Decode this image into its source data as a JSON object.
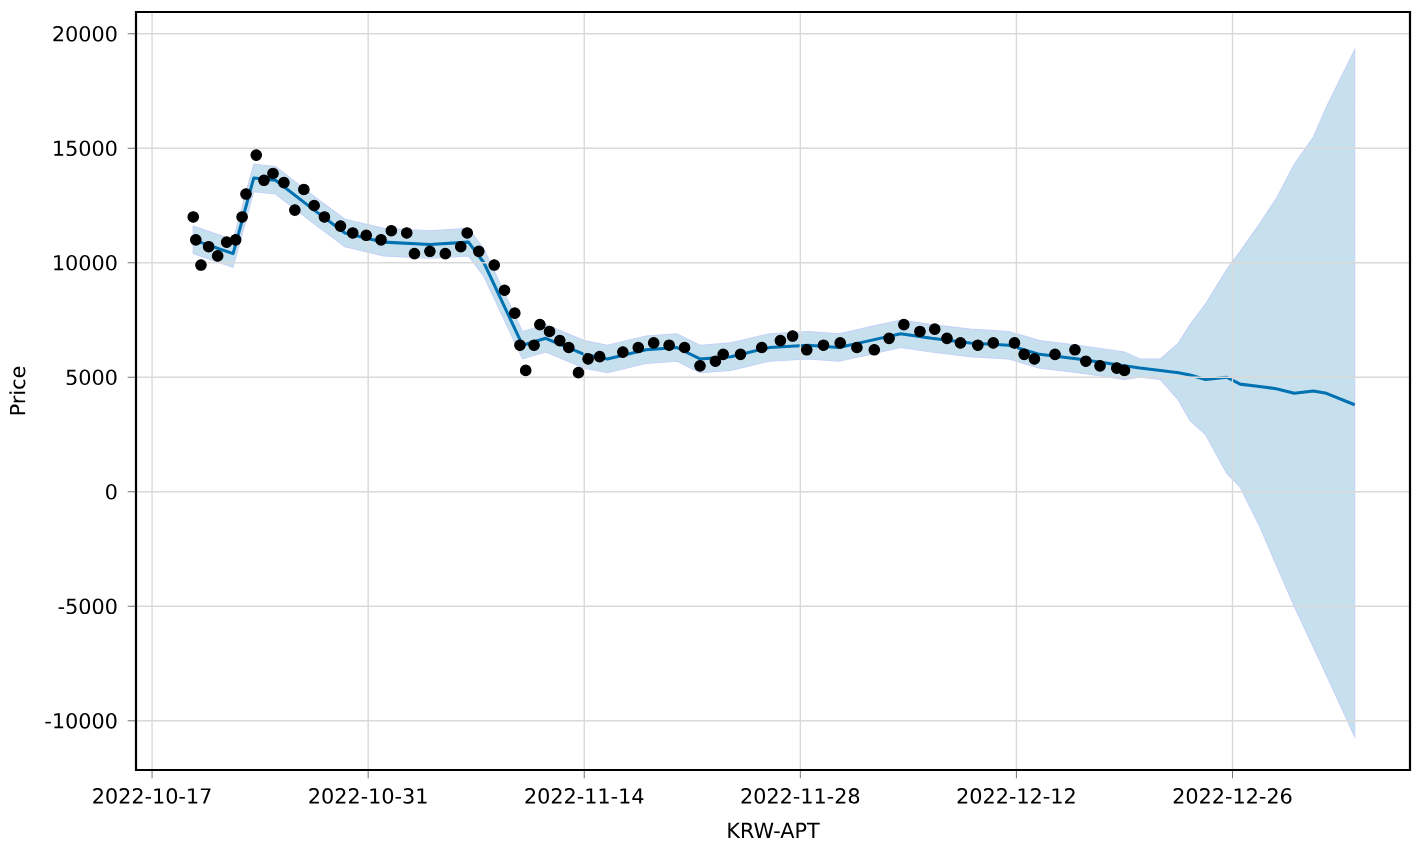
{
  "chart_data": {
    "type": "line",
    "xlabel": "KRW-APT",
    "ylabel": "Price",
    "xlim": [
      "2022-10-15T23:00",
      "2023-01-06T12:00"
    ],
    "ylim": [
      -12150,
      20950
    ],
    "xticks": [
      "2022-10-17",
      "2022-10-31",
      "2022-11-14",
      "2022-11-28",
      "2022-12-12",
      "2022-12-26"
    ],
    "yticks": [
      -10000,
      -5000,
      0,
      5000,
      10000,
      15000,
      20000
    ],
    "grid": true,
    "legend": false,
    "series": [
      {
        "color": "#0072b2",
        "line_style": "solid",
        "marker": "none",
        "x": [
          "2022-10-19T16:00",
          "2022-10-22T06:00",
          "2022-10-23T14:00",
          "2022-10-25T00:00",
          "2022-10-27T12:00",
          "2022-10-29T12:00",
          "2022-11-01T00:00",
          "2022-11-04T00:00",
          "2022-11-06T12:00",
          "2022-11-07T12:00",
          "2022-11-10T00:00",
          "2022-11-11T12:00",
          "2022-11-14T00:00",
          "2022-11-15T12:00",
          "2022-11-18T00:00",
          "2022-11-20T00:00",
          "2022-11-21T12:00",
          "2022-11-23T12:00",
          "2022-11-26T00:00",
          "2022-11-28T12:00",
          "2022-11-30T12:00",
          "2022-12-02T12:00",
          "2022-12-04T12:00",
          "2022-12-06T12:00",
          "2022-12-09T00:00",
          "2022-12-11T12:00",
          "2022-12-13T12:00",
          "2022-12-16T00:00",
          "2022-12-19T00:00",
          "2022-12-20T00:00",
          "2022-12-21T08:00",
          "2022-12-22T12:00",
          "2022-12-23T06:00",
          "2022-12-24T06:00",
          "2022-12-25T15:00",
          "2022-12-26T12:00",
          "2022-12-27T18:00",
          "2022-12-28T20:00",
          "2022-12-30T00:00",
          "2022-12-31T06:00",
          "2023-01-01T02:00",
          "2023-01-02T22:00"
        ],
        "values": [
          11000,
          10400,
          13700,
          13600,
          12300,
          11300,
          10900,
          10800,
          10900,
          10000,
          6400,
          6700,
          6000,
          5800,
          6200,
          6300,
          5800,
          5900,
          6300,
          6400,
          6300,
          6600,
          6900,
          6700,
          6500,
          6400,
          6000,
          5800,
          5500,
          5400,
          5300,
          5200,
          5100,
          4900,
          5000,
          4700,
          4600,
          4500,
          4300,
          4400,
          4300,
          3800
        ],
        "lower": [
          10400,
          9800,
          13100,
          13000,
          11700,
          10700,
          10300,
          10200,
          10300,
          9400,
          5800,
          6100,
          5400,
          5200,
          5600,
          5700,
          5200,
          5300,
          5700,
          5800,
          5700,
          6000,
          6300,
          6100,
          5900,
          5800,
          5400,
          5200,
          4900,
          5000,
          4900,
          4000,
          3100,
          2500,
          800,
          200,
          -1500,
          -3200,
          -5000,
          -6800,
          -8000,
          -10700
        ],
        "upper": [
          11600,
          11000,
          14300,
          14200,
          12900,
          11900,
          11500,
          11400,
          11500,
          10600,
          7000,
          7300,
          6600,
          6400,
          6800,
          6900,
          6400,
          6500,
          6900,
          7000,
          6900,
          7200,
          7500,
          7300,
          7100,
          7000,
          6600,
          6400,
          6100,
          5800,
          5800,
          6500,
          7300,
          8200,
          9700,
          10500,
          11700,
          12800,
          14300,
          15500,
          16800,
          19300
        ]
      },
      {
        "type": "scatter",
        "color": "#000000",
        "marker": "circle",
        "x": [
          "2022-10-19T16:00",
          "2022-10-19T20:00",
          "2022-10-20T04:00",
          "2022-10-20T16:00",
          "2022-10-21T06:00",
          "2022-10-21T20:00",
          "2022-10-22T10:00",
          "2022-10-22T20:00",
          "2022-10-23T02:00",
          "2022-10-23T18:00",
          "2022-10-24T06:00",
          "2022-10-24T20:00",
          "2022-10-25T13:00",
          "2022-10-26T06:00",
          "2022-10-26T20:00",
          "2022-10-27T12:00",
          "2022-10-28T04:00",
          "2022-10-29T05:00",
          "2022-10-30T00:00",
          "2022-10-30T21:00",
          "2022-10-31T20:00",
          "2022-11-01T12:00",
          "2022-11-02T12:00",
          "2022-11-03T00:00",
          "2022-11-04T00:00",
          "2022-11-05T00:00",
          "2022-11-06T00:00",
          "2022-11-06T10:00",
          "2022-11-07T04:00",
          "2022-11-08T04:00",
          "2022-11-08T20:00",
          "2022-11-09T12:00",
          "2022-11-09T20:00",
          "2022-11-10T05:00",
          "2022-11-10T18:00",
          "2022-11-11T03:00",
          "2022-11-11T18:00",
          "2022-11-12T10:00",
          "2022-11-13T00:00",
          "2022-11-13T15:00",
          "2022-11-14T06:00",
          "2022-11-15T00:00",
          "2022-11-16T12:00",
          "2022-11-17T12:00",
          "2022-11-18T12:00",
          "2022-11-19T12:00",
          "2022-11-20T12:00",
          "2022-11-21T12:00",
          "2022-11-22T12:00",
          "2022-11-23T00:00",
          "2022-11-24T03:00",
          "2022-11-25T12:00",
          "2022-11-26T17:00",
          "2022-11-27T12:00",
          "2022-11-28T10:00",
          "2022-11-29T12:00",
          "2022-11-30T14:00",
          "2022-12-01T16:00",
          "2022-12-02T19:00",
          "2022-12-03T18:00",
          "2022-12-04T17:00",
          "2022-12-05T18:00",
          "2022-12-06T17:00",
          "2022-12-07T12:00",
          "2022-12-08T09:00",
          "2022-12-09T12:00",
          "2022-12-10T12:00",
          "2022-12-11T21:00",
          "2022-12-12T12:00",
          "2022-12-13T04:00",
          "2022-12-14T12:00",
          "2022-12-15T19:00",
          "2022-12-16T12:00",
          "2022-12-17T10:00",
          "2022-12-18T12:00",
          "2022-12-19T00:00"
        ],
        "values": [
          12000,
          11000,
          9900,
          10700,
          10300,
          10900,
          11000,
          12000,
          13000,
          14700,
          13600,
          13900,
          13500,
          12300,
          13200,
          12500,
          12000,
          11600,
          11300,
          11200,
          11000,
          11400,
          11300,
          10400,
          10500,
          10400,
          10700,
          11300,
          10500,
          9900,
          8800,
          7800,
          6400,
          5300,
          6400,
          7300,
          7000,
          6600,
          6300,
          5200,
          5800,
          5900,
          6100,
          6300,
          6500,
          6400,
          6300,
          5500,
          5700,
          6000,
          6000,
          6300,
          6600,
          6800,
          6200,
          6400,
          6500,
          6300,
          6200,
          6700,
          7300,
          7000,
          7100,
          6700,
          6500,
          6400,
          6500,
          6500,
          6000,
          5800,
          6000,
          6200,
          5700,
          5500,
          5400,
          5300
        ]
      }
    ]
  }
}
